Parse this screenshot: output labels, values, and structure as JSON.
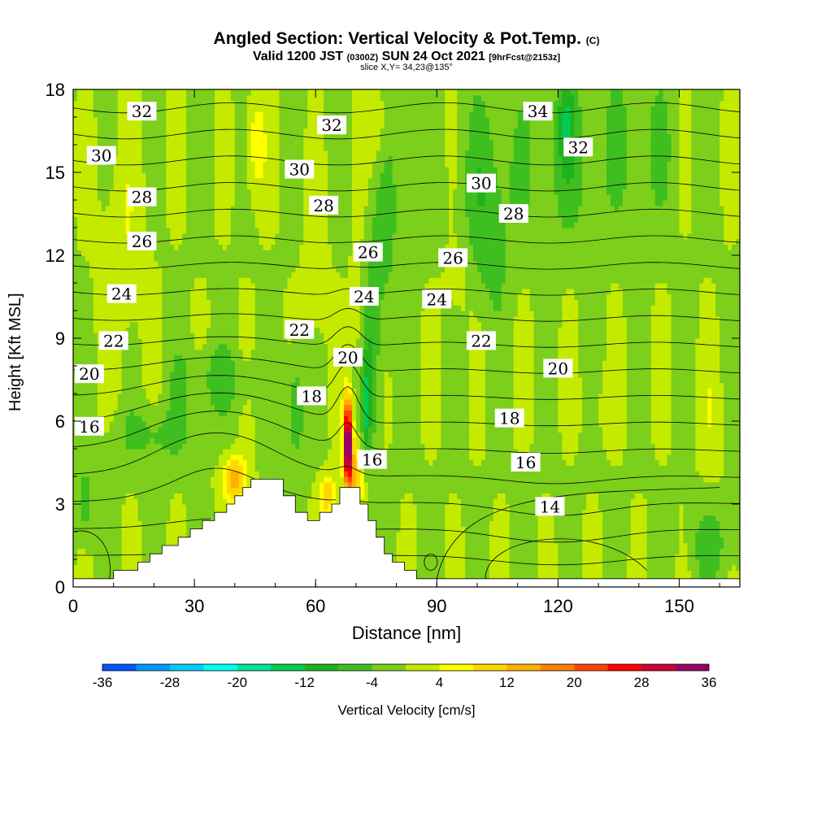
{
  "title": {
    "main": "Angled Section: Vertical Velocity & Pot.Temp.",
    "main_tag": "(C)",
    "valid_prefix": "Valid 1200 JST",
    "valid_utc": "(0300Z)",
    "valid_date": "SUN 24 Oct 2021",
    "forecast": "[9hrFcst@2153z]",
    "slice": "slice X,Y= 34,23@135°"
  },
  "chart_data": {
    "type": "heatmap",
    "xlabel": "Distance [nm]",
    "ylabel": "Height [Kft MSL]",
    "xlim": [
      0,
      165
    ],
    "ylim": [
      0,
      18
    ],
    "x_ticks": [
      0,
      30,
      60,
      90,
      120,
      150
    ],
    "y_ticks": [
      0,
      3,
      6,
      9,
      12,
      15,
      18
    ],
    "colorbar": {
      "label": "Vertical Velocity [cm/s]",
      "ticks": [
        -36,
        -28,
        -20,
        -12,
        -4,
        4,
        12,
        20,
        28,
        36
      ],
      "levels": [
        -36,
        -32,
        -28,
        -24,
        -20,
        -16,
        -12,
        -8,
        -4,
        0,
        4,
        8,
        12,
        16,
        20,
        24,
        28,
        32,
        36
      ],
      "colors": [
        "#0000ff",
        "#0055ff",
        "#0099ff",
        "#00ccff",
        "#00ffee",
        "#00e39a",
        "#00cc55",
        "#1fb31f",
        "#3fbf1f",
        "#7ccf1a",
        "#c4ea00",
        "#ffff00",
        "#ffd700",
        "#ffb000",
        "#ff8000",
        "#ff4400",
        "#ff0000",
        "#cc0033",
        "#990066",
        "#5a0090"
      ]
    },
    "terrain_profile": [
      [
        0,
        0.3
      ],
      [
        10,
        0.3
      ],
      [
        10,
        0.6
      ],
      [
        16,
        0.6
      ],
      [
        16,
        0.9
      ],
      [
        19,
        0.9
      ],
      [
        19,
        1.2
      ],
      [
        22,
        1.2
      ],
      [
        22,
        1.5
      ],
      [
        26,
        1.5
      ],
      [
        26,
        1.8
      ],
      [
        29,
        1.8
      ],
      [
        29,
        2.1
      ],
      [
        32,
        2.1
      ],
      [
        32,
        2.4
      ],
      [
        35,
        2.4
      ],
      [
        35,
        2.7
      ],
      [
        38,
        2.7
      ],
      [
        38,
        3.0
      ],
      [
        40,
        3.0
      ],
      [
        40,
        3.3
      ],
      [
        42,
        3.3
      ],
      [
        42,
        3.6
      ],
      [
        44,
        3.6
      ],
      [
        44,
        3.9
      ],
      [
        52,
        3.9
      ],
      [
        52,
        3.3
      ],
      [
        55,
        3.3
      ],
      [
        55,
        2.7
      ],
      [
        58,
        2.7
      ],
      [
        58,
        2.4
      ],
      [
        61,
        2.4
      ],
      [
        61,
        2.7
      ],
      [
        64,
        2.7
      ],
      [
        64,
        3.0
      ],
      [
        66,
        3.0
      ],
      [
        66,
        3.6
      ],
      [
        71,
        3.6
      ],
      [
        71,
        3.0
      ],
      [
        73,
        3.0
      ],
      [
        73,
        2.4
      ],
      [
        75,
        2.4
      ],
      [
        75,
        1.8
      ],
      [
        77,
        1.8
      ],
      [
        77,
        1.2
      ],
      [
        79,
        1.2
      ],
      [
        79,
        0.9
      ],
      [
        82,
        0.9
      ],
      [
        82,
        0.6
      ],
      [
        85,
        0.6
      ],
      [
        85,
        0.3
      ],
      [
        165,
        0.3
      ]
    ],
    "isentropes_C": [
      {
        "value": "14",
        "label_x": 118,
        "label_y": 2.9
      },
      {
        "value": "16",
        "label_x": 4,
        "label_y": 5.8
      },
      {
        "value": "16",
        "label_x": 74,
        "label_y": 4.6
      },
      {
        "value": "16",
        "label_x": 112,
        "label_y": 4.5
      },
      {
        "value": "18",
        "label_x": 59,
        "label_y": 6.9
      },
      {
        "value": "18",
        "label_x": 108,
        "label_y": 6.1
      },
      {
        "value": "20",
        "label_x": 4,
        "label_y": 7.7
      },
      {
        "value": "20",
        "label_x": 68,
        "label_y": 8.3
      },
      {
        "value": "20",
        "label_x": 120,
        "label_y": 7.9
      },
      {
        "value": "22",
        "label_x": 10,
        "label_y": 8.9
      },
      {
        "value": "22",
        "label_x": 56,
        "label_y": 9.3
      },
      {
        "value": "22",
        "label_x": 101,
        "label_y": 8.9
      },
      {
        "value": "24",
        "label_x": 12,
        "label_y": 10.6
      },
      {
        "value": "24",
        "label_x": 72,
        "label_y": 10.5
      },
      {
        "value": "24",
        "label_x": 90,
        "label_y": 10.4
      },
      {
        "value": "26",
        "label_x": 17,
        "label_y": 12.5
      },
      {
        "value": "26",
        "label_x": 73,
        "label_y": 12.1
      },
      {
        "value": "26",
        "label_x": 94,
        "label_y": 11.9
      },
      {
        "value": "28",
        "label_x": 17,
        "label_y": 14.1
      },
      {
        "value": "28",
        "label_x": 62,
        "label_y": 13.8
      },
      {
        "value": "28",
        "label_x": 109,
        "label_y": 13.5
      },
      {
        "value": "30",
        "label_x": 7,
        "label_y": 15.6
      },
      {
        "value": "30",
        "label_x": 56,
        "label_y": 15.1
      },
      {
        "value": "30",
        "label_x": 101,
        "label_y": 14.6
      },
      {
        "value": "32",
        "label_x": 17,
        "label_y": 17.2
      },
      {
        "value": "32",
        "label_x": 64,
        "label_y": 16.7
      },
      {
        "value": "32",
        "label_x": 125,
        "label_y": 15.9
      },
      {
        "value": "34",
        "label_x": 115,
        "label_y": 17.2
      }
    ]
  }
}
